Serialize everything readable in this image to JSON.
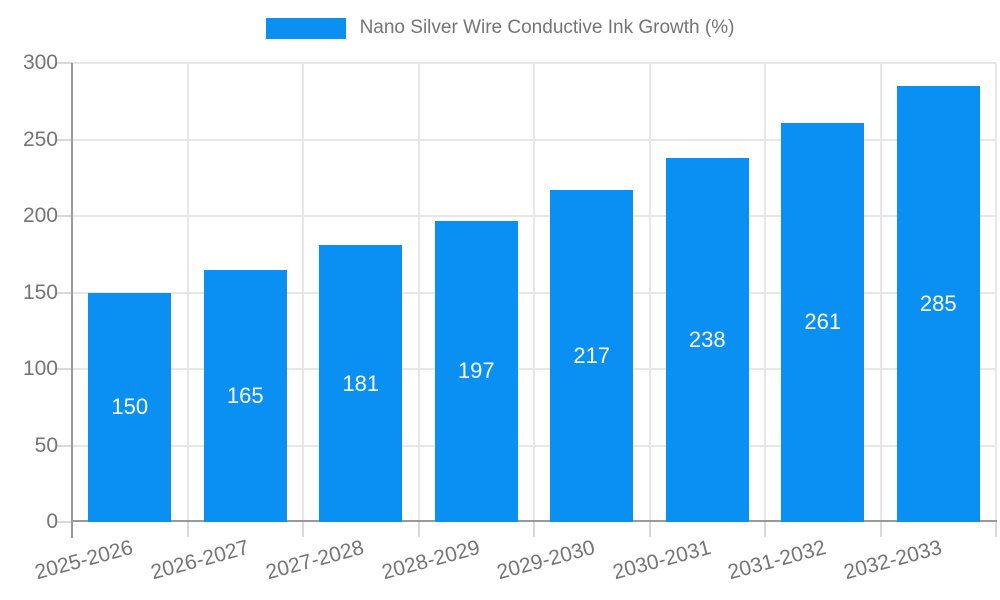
{
  "chart_data": {
    "type": "bar",
    "title": "Nano Silver Wire Conductive Ink Growth (%)",
    "categories": [
      "2025-2026",
      "2026-2027",
      "2027-2028",
      "2028-2029",
      "2029-2030",
      "2030-2031",
      "2031-2032",
      "2032-2033"
    ],
    "values": [
      150,
      165,
      181,
      197,
      217,
      238,
      261,
      285
    ],
    "xlabel": "",
    "ylabel": "",
    "ylim": [
      0,
      300
    ],
    "yticks": [
      0,
      50,
      100,
      150,
      200,
      250,
      300
    ],
    "grid": true,
    "legend_position": "top-center",
    "value_labels": "centered-inside-bars"
  },
  "legend": {
    "label": "Nano Silver Wire Conductive Ink Growth (%)"
  },
  "colors": {
    "bar": "#0a8ff2",
    "value_label": "#ffffff",
    "grid": "#e7e7e7",
    "axis": "#999999",
    "tick": "#d9d9d9",
    "text": "#757575",
    "background": "#ffffff"
  }
}
